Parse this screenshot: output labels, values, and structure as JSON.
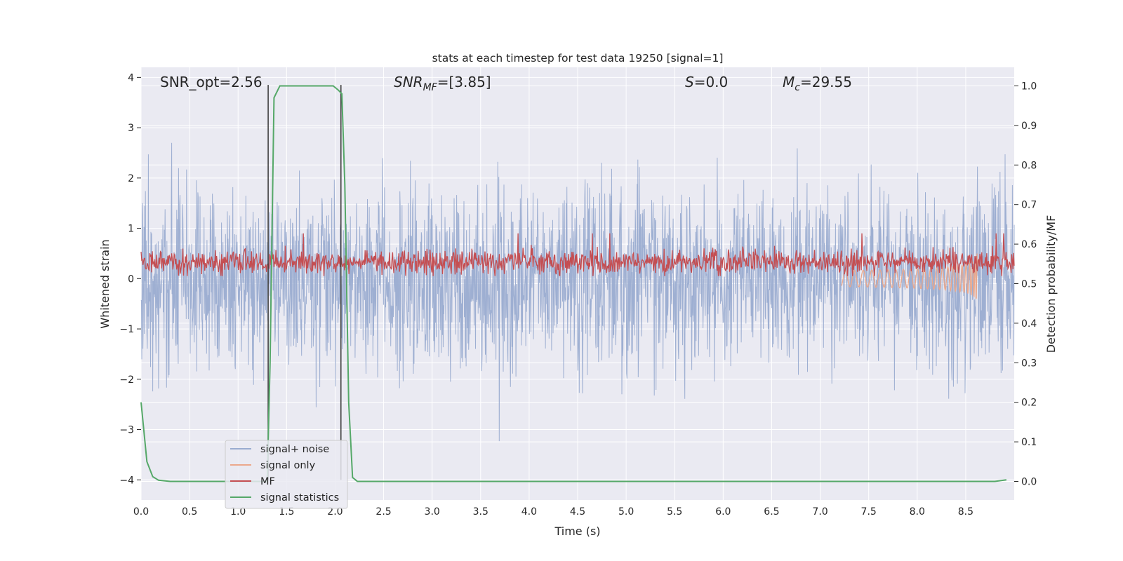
{
  "chart_data": {
    "type": "line",
    "title": "stats at each timestep for test data 19250 [signal=1]",
    "xlabel": "Time (s)",
    "ylabel_left": "Whitened strain",
    "ylabel_right": "Detection probability/MF",
    "xlim": [
      0.0,
      9.0
    ],
    "ylim_left": [
      -4.4,
      4.2
    ],
    "ylim_right": [
      -0.047,
      1.047
    ],
    "grid": true,
    "xticks": [
      "0.0",
      "0.5",
      "1.0",
      "1.5",
      "2.0",
      "2.5",
      "3.0",
      "3.5",
      "4.0",
      "4.5",
      "5.0",
      "5.5",
      "6.0",
      "6.5",
      "7.0",
      "7.5",
      "8.0",
      "8.5"
    ],
    "yticks_left": [
      "−4",
      "−3",
      "−2",
      "−1",
      "0",
      "1",
      "2",
      "3",
      "4"
    ],
    "yticks_right": [
      "0.0",
      "0.1",
      "0.2",
      "0.3",
      "0.4",
      "0.5",
      "0.6",
      "0.7",
      "0.8",
      "0.9",
      "1.0"
    ],
    "annotations": {
      "snr_opt": "SNR_opt=2.56",
      "snr_mf_base": "SNR",
      "snr_mf_sub": "MF",
      "snr_mf_val": "=[3.85]",
      "s_base": "S",
      "s_val": "=0.0",
      "mc_base": "M",
      "mc_sub": "c",
      "mc_val": "=29.55"
    },
    "vlines_x": [
      1.31,
      2.06
    ],
    "series": [
      {
        "name": "signal+ noise",
        "color": "#9aacd0",
        "noise_band": [
          -2.3,
          2.3
        ],
        "extremes": [
          3.8,
          -3.85
        ]
      },
      {
        "name": "signal only",
        "color": "#eba88c",
        "chirp_end": 8.62,
        "min_value": -0.55
      },
      {
        "name": "MF",
        "color": "#c44e52",
        "band": [
          0.05,
          0.65
        ],
        "max_value": 1.0
      },
      {
        "name": "signal statistics",
        "color": "#55a868",
        "x": [
          0.0,
          0.06,
          0.12,
          0.18,
          0.3,
          1.3,
          1.33,
          1.37,
          1.43,
          1.5,
          1.9,
          1.98,
          2.03,
          2.07,
          2.1,
          2.14,
          2.18,
          2.23,
          2.3,
          8.8,
          8.92
        ],
        "values": [
          0.2,
          0.05,
          0.012,
          0.003,
          0.0,
          0.0,
          0.3,
          0.97,
          1.0,
          1.0,
          1.0,
          1.0,
          0.99,
          0.98,
          0.75,
          0.2,
          0.01,
          0.0,
          0.0,
          0.0,
          0.004
        ]
      }
    ],
    "legend_position": "lower-left",
    "colors": {
      "axes_bg": "#eaeaf2",
      "grid": "#ffffff",
      "vline": "#404040"
    }
  }
}
